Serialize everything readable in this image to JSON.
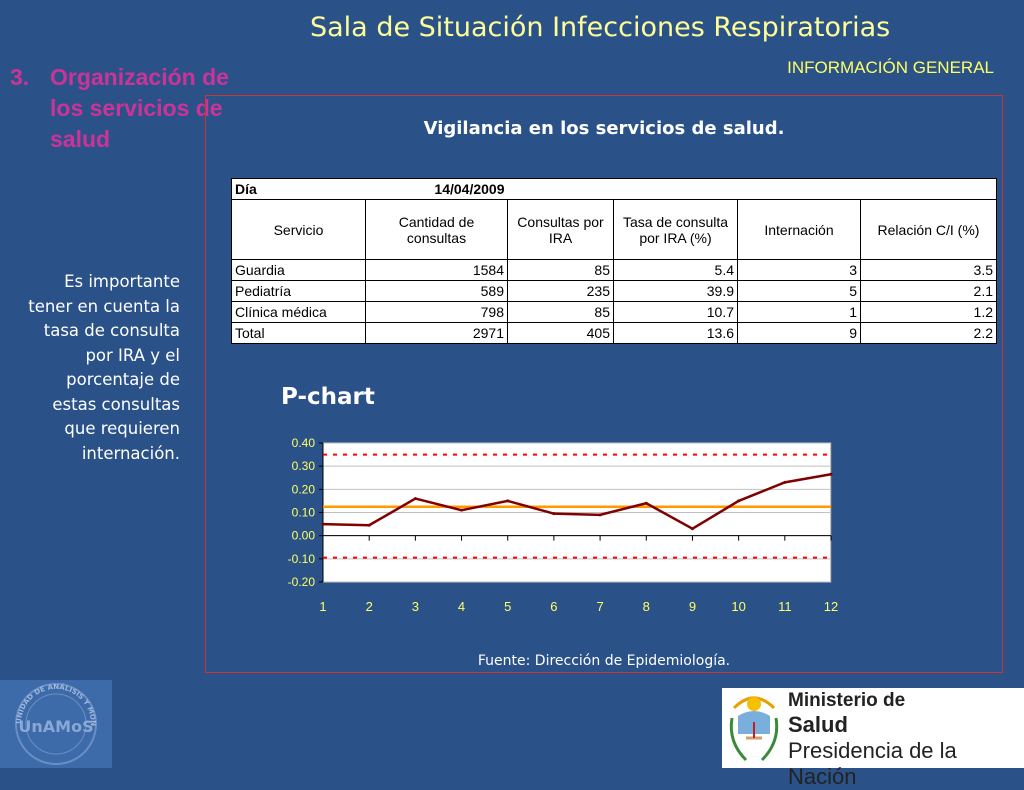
{
  "header": {
    "title": "Sala de Situación Infecciones Respiratorias",
    "subtitle": "INFORMACIÓN GENERAL"
  },
  "section": {
    "number": "3.",
    "title": "Organización de los servicios de salud"
  },
  "note": "Es importante tener en cuenta la tasa de consulta por IRA y el porcentaje de estas consultas que requieren internación.",
  "panel": {
    "title": "Vigilancia en los servicios de salud.",
    "source": "Fuente: Dirección de Epidemiología."
  },
  "table": {
    "day_label": "Día",
    "day_value": "14/04/2009",
    "headers": [
      "Servicio",
      "Cantidad de consultas",
      "Consultas por IRA",
      "Tasa de consulta por IRA (%)",
      "Internación",
      "Relación C/I (%)"
    ],
    "rows": [
      [
        "Guardia",
        "1584",
        "85",
        "5.4",
        "3",
        "3.5"
      ],
      [
        "Pediatría",
        "589",
        "235",
        "39.9",
        "5",
        "2.1"
      ],
      [
        "Clínica médica",
        "798",
        "85",
        "10.7",
        "1",
        "1.2"
      ],
      [
        "Total",
        "2971",
        "405",
        "13.6",
        "9",
        "2.2"
      ]
    ]
  },
  "chart_title": "P-chart",
  "chart_data": {
    "type": "line",
    "x": [
      1,
      2,
      3,
      4,
      5,
      6,
      7,
      8,
      9,
      10,
      11,
      12
    ],
    "series": [
      {
        "values": [
          0.05,
          0.045,
          0.16,
          0.11,
          0.15,
          0.095,
          0.09,
          0.14,
          0.03,
          0.15,
          0.23,
          0.265
        ],
        "color": "#800000"
      }
    ],
    "center_line": 0.125,
    "upper_limit": 0.35,
    "lower_limit": -0.095,
    "ylim": [
      -0.2,
      0.4
    ],
    "yticks": [
      "0.40",
      "0.30",
      "0.20",
      "0.10",
      "0.00",
      "-0.10",
      "-0.20"
    ],
    "xticks": [
      "1",
      "2",
      "3",
      "4",
      "5",
      "6",
      "7",
      "8",
      "9",
      "10",
      "11",
      "12"
    ],
    "grid": true,
    "center_color": "#ff9900",
    "limit_color": "#ff0000"
  },
  "logos": {
    "unamos_text": "UnAMoS",
    "unamos_ring": "UNIDAD DE ANÁLISIS Y MONITOREO DE LA SALUD",
    "ministerio_line1": "Ministerio de",
    "ministerio_line2": "Salud",
    "ministerio_line3": "Presidencia de la Nación"
  },
  "colors": {
    "background": "#2a5288",
    "title": "#ffff99",
    "section": "#cc3399",
    "panel_border": "#cc3333"
  }
}
